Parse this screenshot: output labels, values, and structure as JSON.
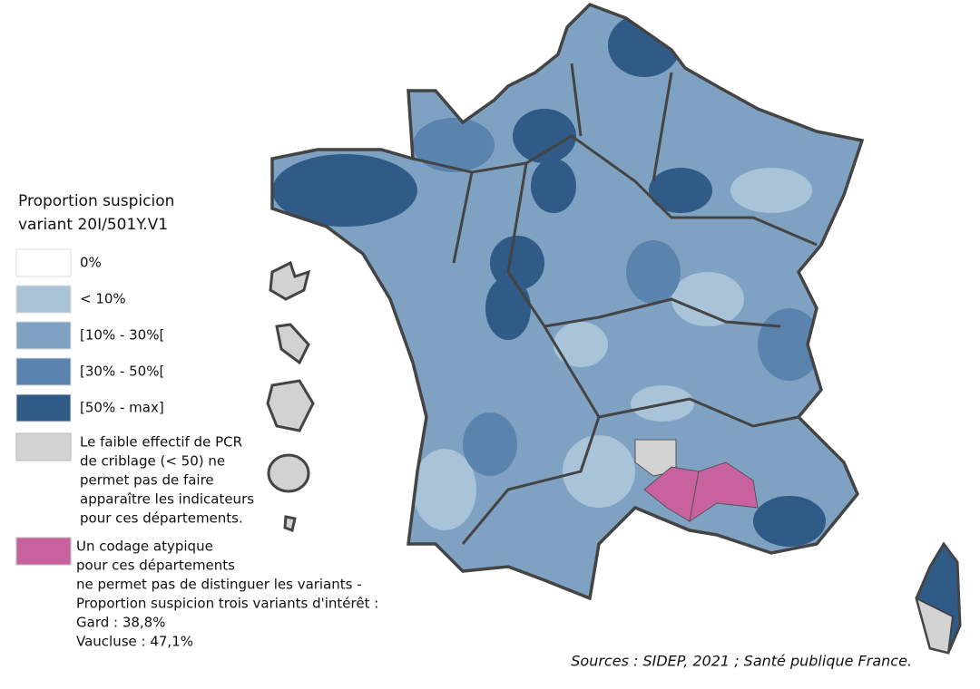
{
  "legend": {
    "title_lines": [
      "Proportion suspicion",
      "variant 20I/501Y.V1"
    ],
    "items": [
      {
        "label": "0%",
        "color": "#ffffff"
      },
      {
        "label": "< 10%",
        "color": "#a9c3d8"
      },
      {
        "label": "[10% - 30%[",
        "color": "#7fa2c3"
      },
      {
        "label": "[30% - 50%[",
        "color": "#5a83ad"
      },
      {
        "label": "[50% - max]",
        "color": "#2f5b86"
      }
    ],
    "notes": [
      {
        "color": "#d2d2d2",
        "lines": [
          "Le faible effectif de PCR",
          "de criblage (< 50) ne",
          "permet pas de faire",
          "apparaître les indicateurs",
          "pour ces départements."
        ]
      },
      {
        "color": "#c8629f",
        "lines": [
          "Un codage atypique",
          "pour ces départements",
          "ne permet pas de distinguer les variants -",
          "Proportion suspicion trois variants d'intérêt :",
          "Gard : 38,8%",
          "Vaucluse : 47,1%"
        ]
      }
    ]
  },
  "source": "Sources : SIDEP, 2021 ; Santé publique France."
}
